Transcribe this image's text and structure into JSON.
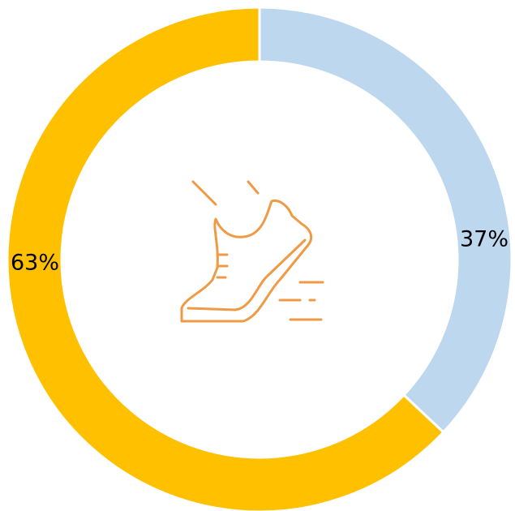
{
  "chart_data": {
    "type": "donut",
    "values": [
      37,
      63
    ],
    "value_labels": [
      "37%",
      "63%"
    ],
    "colors": [
      "#bdd7ee",
      "#ffc000"
    ]
  }
}
